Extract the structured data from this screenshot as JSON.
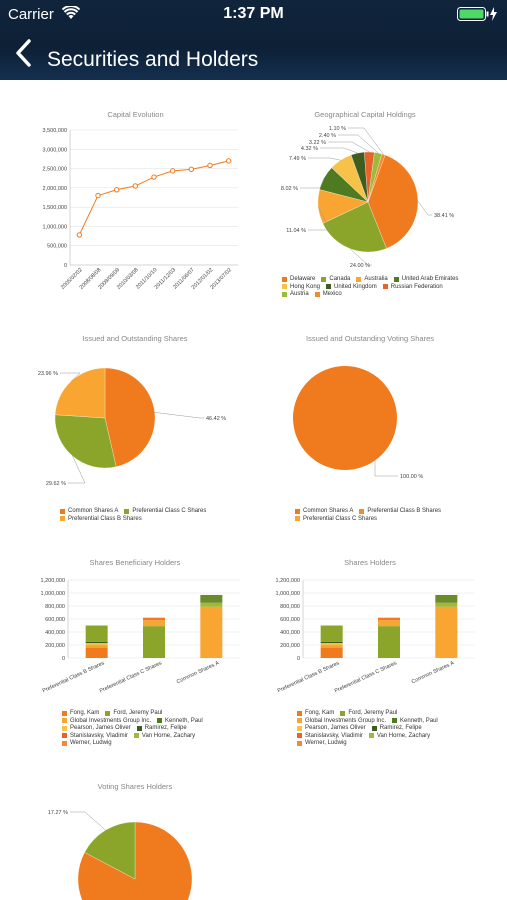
{
  "status": {
    "carrier": "Carrier",
    "time": "1:37 PM"
  },
  "nav": {
    "title": "Securities and Holders"
  },
  "colors": {
    "orange": "#f07a1e",
    "lightorange": "#f9a532",
    "olive": "#8aa52a",
    "darkgreen": "#3f5d1e",
    "yellow": "#f6c24a",
    "header": "#10243c"
  },
  "icons": [
    "wifi-icon",
    "battery-icon",
    "back-chevron-icon"
  ],
  "chart_data": [
    {
      "type": "line",
      "title": "Capital Evolution",
      "x": [
        "2005/02/02",
        "2008/08/08",
        "2009/09/09",
        "2010/03/08",
        "2011/10/10",
        "2011/12/03",
        "2011/06/07",
        "2012/01/02",
        "2013/07/02"
      ],
      "values": [
        780000,
        1800000,
        1950000,
        2050000,
        2280000,
        2440000,
        2480000,
        2580000,
        2700000
      ],
      "ylim": [
        0,
        3500000
      ],
      "yticks": [
        "0",
        "500,000",
        "1,000,000",
        "1,500,000",
        "2,000,000",
        "2,500,000",
        "3,000,000",
        "3,500,000"
      ]
    },
    {
      "type": "pie",
      "title": "Geographical Capital Holdings",
      "labels": [
        "Delaware",
        "Canada",
        "Australia",
        "United Arab Emirates",
        "Hong Kong",
        "United Kingdom",
        "Russian Federation",
        "Austria",
        "Mexico"
      ],
      "slices": [
        {
          "label": "38.41 %",
          "value": 38.41,
          "color": "#f07a1e"
        },
        {
          "label": "24.00 %",
          "value": 24.0,
          "color": "#8aa52a"
        },
        {
          "label": "11.04 %",
          "value": 11.04,
          "color": "#f9a532"
        },
        {
          "label": "8.02 %",
          "value": 8.02,
          "color": "#4e7a22"
        },
        {
          "label": "7.49 %",
          "value": 7.49,
          "color": "#f6c24a"
        },
        {
          "label": "4.32 %",
          "value": 4.32,
          "color": "#3f5d1e"
        },
        {
          "label": "3.22 %",
          "value": 3.22,
          "color": "#e8632a"
        },
        {
          "label": "2.40 %",
          "value": 2.4,
          "color": "#9bbb3a"
        },
        {
          "label": "1.10 %",
          "value": 1.1,
          "color": "#f28b30"
        }
      ],
      "legend": [
        {
          "name": "Delaware",
          "color": "#f07a1e"
        },
        {
          "name": "Canada",
          "color": "#8aa52a"
        },
        {
          "name": "Australia",
          "color": "#f9a532"
        },
        {
          "name": "United Arab Emirates",
          "color": "#4e7a22"
        },
        {
          "name": "Hong Kong",
          "color": "#f6c24a"
        },
        {
          "name": "United Kingdom",
          "color": "#3f5d1e"
        },
        {
          "name": "Russian Federation",
          "color": "#e8632a"
        },
        {
          "name": "Austria",
          "color": "#9bbb3a"
        },
        {
          "name": "Mexico",
          "color": "#f28b30"
        }
      ]
    },
    {
      "type": "pie",
      "title": "Issued and Outstanding Shares",
      "slices": [
        {
          "label": "46.42 %",
          "value": 46.42,
          "color": "#f07a1e"
        },
        {
          "label": "29.62 %",
          "value": 29.62,
          "color": "#8aa52a"
        },
        {
          "label": "23.96 %",
          "value": 23.96,
          "color": "#f9a532"
        }
      ],
      "legend": [
        {
          "name": "Common Shares A",
          "color": "#f07a1e"
        },
        {
          "name": "Preferential Class C Shares",
          "color": "#8aa52a"
        },
        {
          "name": "Preferential Class B Shares",
          "color": "#f9a532"
        }
      ]
    },
    {
      "type": "pie",
      "title": "Issued and Outstanding Voting Shares",
      "slices": [
        {
          "label": "100.00 %",
          "value": 100,
          "color": "#f07a1e"
        }
      ],
      "legend": [
        {
          "name": "Common Shares A",
          "color": "#f07a1e"
        },
        {
          "name": "Preferential Class B Shares",
          "color": "#f28b30"
        },
        {
          "name": "Preferential Class C Shares",
          "color": "#f9a532"
        }
      ]
    },
    {
      "type": "bar",
      "title": "Shares Beneficiary Holders",
      "categories": [
        "Preferential Class B Shares",
        "Preferential Class C Shares",
        "Common Shares A"
      ],
      "stacks": [
        [
          {
            "value": 160000,
            "color": "#f07a1e"
          },
          {
            "value": 40000,
            "color": "#f9a532"
          },
          {
            "value": 30000,
            "color": "#f6c24a"
          },
          {
            "value": 20000,
            "color": "#3f5d1e"
          },
          {
            "value": 250000,
            "color": "#8aa52a"
          }
        ],
        [
          {
            "value": 490000,
            "color": "#8aa52a"
          },
          {
            "value": 90000,
            "color": "#f9a532"
          },
          {
            "value": 40000,
            "color": "#f07a1e"
          }
        ],
        [
          {
            "value": 790000,
            "color": "#f9a532"
          },
          {
            "value": 60000,
            "color": "#9bbb3a"
          },
          {
            "value": 120000,
            "color": "#6b8a2a"
          }
        ]
      ],
      "ylim": [
        0,
        1200000
      ],
      "yticks": [
        "0",
        "200,000",
        "400,000",
        "600,000",
        "800,000",
        "1,000,000",
        "1,200,000"
      ]
    },
    {
      "type": "bar",
      "title": "Shares Holders",
      "categories": [
        "Preferential Class B Shares",
        "Preferential Class C Shares",
        "Common Shares A"
      ],
      "stacks": [
        [
          {
            "value": 160000,
            "color": "#f07a1e"
          },
          {
            "value": 40000,
            "color": "#f9a532"
          },
          {
            "value": 30000,
            "color": "#f6c24a"
          },
          {
            "value": 20000,
            "color": "#3f5d1e"
          },
          {
            "value": 250000,
            "color": "#8aa52a"
          }
        ],
        [
          {
            "value": 490000,
            "color": "#8aa52a"
          },
          {
            "value": 90000,
            "color": "#f9a532"
          },
          {
            "value": 40000,
            "color": "#f07a1e"
          }
        ],
        [
          {
            "value": 790000,
            "color": "#f9a532"
          },
          {
            "value": 60000,
            "color": "#9bbb3a"
          },
          {
            "value": 120000,
            "color": "#6b8a2a"
          }
        ]
      ],
      "ylim": [
        0,
        1200000
      ],
      "yticks": [
        "0",
        "200,000",
        "400,000",
        "600,000",
        "800,000",
        "1,000,000",
        "1,200,000"
      ]
    },
    {
      "type": "pie",
      "title": "Voting Shares Holders",
      "slices": [
        {
          "label": "",
          "value": 82.73,
          "color": "#f07a1e"
        },
        {
          "label": "17.27 %",
          "value": 17.27,
          "color": "#8aa52a"
        }
      ]
    }
  ],
  "holders_legend": [
    [
      {
        "name": "Fong, Kam",
        "color": "#f07a1e"
      },
      {
        "name": "Ford, Jeremy Paul",
        "color": "#8aa52a"
      }
    ],
    [
      {
        "name": "Global Investments Group Inc.",
        "color": "#f9a532"
      },
      {
        "name": "Kenneth, Paul",
        "color": "#4e7a22"
      }
    ],
    [
      {
        "name": "Pearson, James Oliver",
        "color": "#f6c24a"
      },
      {
        "name": "Ramirez, Felipe",
        "color": "#3f5d1e"
      }
    ],
    [
      {
        "name": "Stanislavsky, Vladimir",
        "color": "#e8632a"
      },
      {
        "name": "Van Horne, Zachary",
        "color": "#9bbb3a"
      }
    ],
    [
      {
        "name": "Werner, Ludwig",
        "color": "#f28b30"
      }
    ]
  ]
}
